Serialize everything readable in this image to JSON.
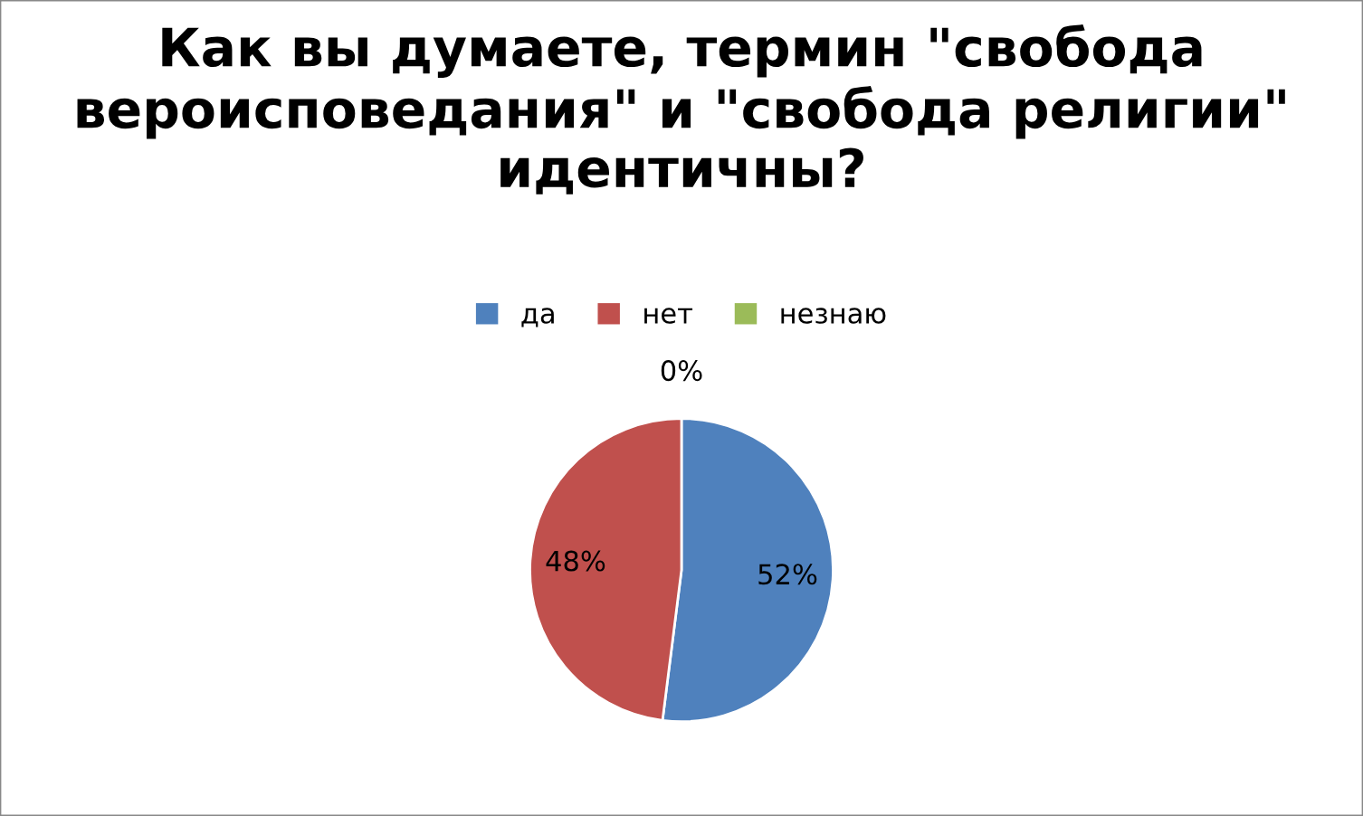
{
  "chart_data": {
    "type": "pie",
    "title": "Как вы думаете, термин \"свобода вероисповедания\" и \"свобода религии\" идентичны?",
    "categories": [
      "да",
      "нет",
      "незнаю"
    ],
    "values": [
      52,
      48,
      0
    ],
    "colors": [
      "#4f81bd",
      "#c0504d",
      "#9bbb59"
    ],
    "value_labels": [
      "52%",
      "48%",
      "0%"
    ],
    "legend": "top"
  }
}
